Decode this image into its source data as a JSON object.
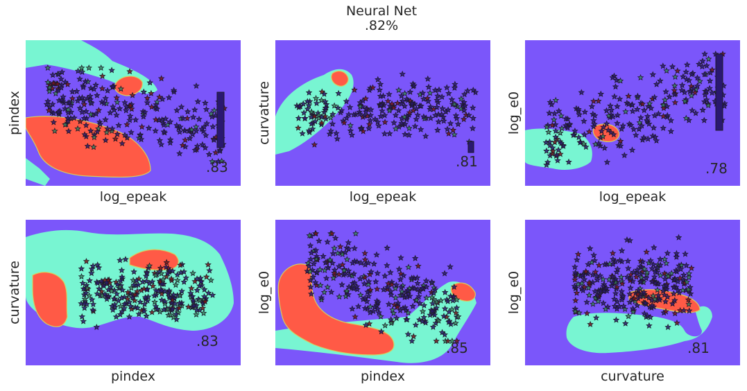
{
  "title_line1": "Neural Net",
  "title_line2": ".82%",
  "colors": {
    "background_region": "#7b56fa",
    "region_cyan": "#78f5d2",
    "region_red": "#ff5a46",
    "region_border": "#d4d060",
    "star_edge": "#1e1a28",
    "star_fill_dark": "#2a1870",
    "star_fill_red": "#7a1416",
    "star_fill_green": "#3a8860"
  },
  "chart_data": [
    {
      "type": "scatter",
      "xlabel": "log_epeak",
      "ylabel": "pindex",
      "score": ".83"
    },
    {
      "type": "scatter",
      "xlabel": "log_epeak",
      "ylabel": "curvature",
      "score": ".81"
    },
    {
      "type": "scatter",
      "xlabel": "log_epeak",
      "ylabel": "log_e0",
      "score": ".78"
    },
    {
      "type": "scatter",
      "xlabel": "pindex",
      "ylabel": "curvature",
      "score": ".83"
    },
    {
      "type": "scatter",
      "xlabel": "pindex",
      "ylabel": "log_e0",
      "score": ".85"
    },
    {
      "type": "scatter",
      "xlabel": "curvature",
      "ylabel": "log_e0",
      "score": ".81"
    }
  ]
}
